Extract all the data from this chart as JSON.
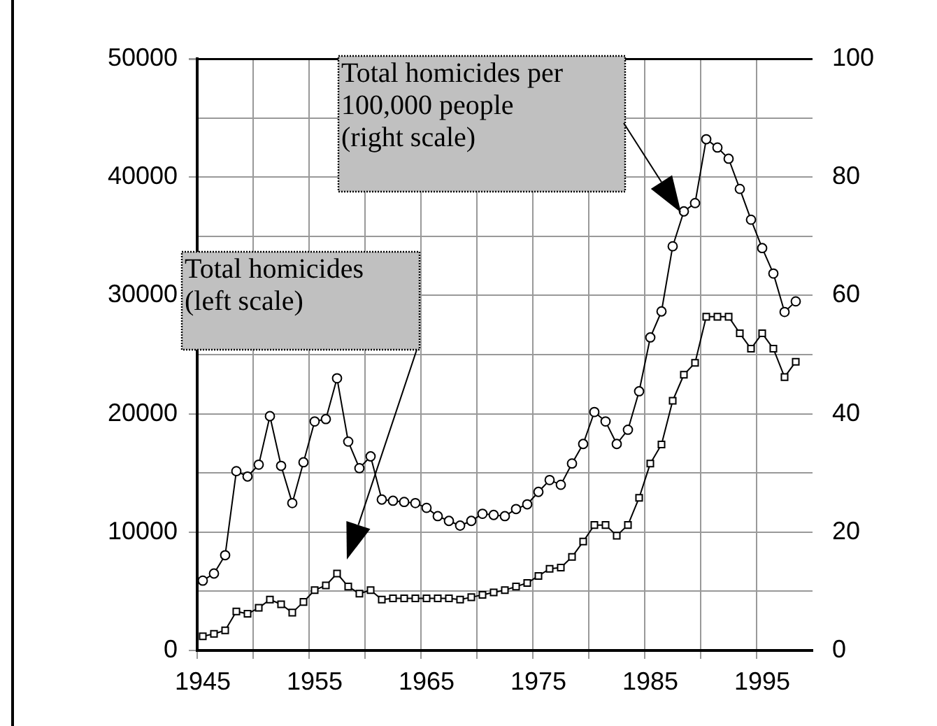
{
  "chart_data": {
    "type": "line",
    "categories": [
      "1945",
      null,
      null,
      null,
      null,
      null,
      null,
      null,
      null,
      null,
      "1955",
      null,
      null,
      null,
      null,
      null,
      null,
      null,
      null,
      null,
      "1965",
      null,
      null,
      null,
      null,
      null,
      null,
      null,
      null,
      null,
      "1975",
      null,
      null,
      null,
      null,
      null,
      null,
      null,
      null,
      null,
      "1985",
      null,
      null,
      null,
      null,
      null,
      null,
      null,
      null,
      null,
      "1995",
      null,
      null,
      null,
      null
    ],
    "series": [
      {
        "color": "#000000",
        "marker": "square",
        "axis": "y",
        "values": [
          1200,
          1400,
          1700,
          3300,
          3100,
          3600,
          4300,
          3900,
          3200,
          4100,
          5100,
          5500,
          6500,
          5400,
          4800,
          5100,
          4300,
          4400,
          4400,
          4400,
          4400,
          4400,
          4400,
          4300,
          4500,
          4700,
          4900,
          5100,
          5400,
          5700,
          6300,
          6900,
          7000,
          7900,
          9200,
          10600,
          10600,
          9700,
          10600,
          12900,
          15800,
          17400,
          21100,
          23300,
          24300,
          28200,
          28200,
          28200,
          26800,
          25500,
          26800,
          25500,
          23100,
          24400,
          null
        ]
      },
      {
        "color": "#000000",
        "marker": "circle",
        "axis": "y2",
        "values": [
          11.8,
          13.0,
          16.1,
          30.3,
          29.4,
          31.4,
          39.6,
          31.2,
          24.9,
          31.8,
          38.7,
          39.1,
          46.0,
          35.3,
          30.8,
          32.8,
          25.5,
          25.3,
          25.1,
          24.9,
          24.1,
          22.7,
          21.9,
          21.1,
          21.9,
          23.1,
          22.9,
          22.7,
          23.9,
          24.7,
          26.8,
          28.8,
          28.0,
          31.6,
          34.9,
          40.3,
          38.7,
          34.9,
          37.3,
          43.8,
          52.9,
          57.3,
          68.3,
          74.2,
          75.6,
          86.4,
          85.0,
          83.1,
          78.0,
          72.8,
          68.0,
          63.7,
          57.2,
          59.0,
          null
        ]
      }
    ],
    "ylim": [
      0,
      50000
    ],
    "yticks": [
      0,
      {
        "value": 5000,
        "label": null
      },
      10000,
      {
        "value": 15000,
        "label": null
      },
      20000,
      {
        "value": 25000,
        "label": null
      },
      30000,
      {
        "value": 35000,
        "label": null
      },
      40000,
      {
        "value": 45000,
        "label": null
      },
      50000
    ],
    "y2lim": [
      0,
      100
    ],
    "y2ticks": [
      0,
      20,
      40,
      60,
      80,
      100
    ],
    "grid": true,
    "legend": false,
    "line_style": "solid",
    "annotations": [
      "Total homicides\n(left scale)",
      "Total homicides per\n100,000 people\n(right scale)"
    ]
  }
}
